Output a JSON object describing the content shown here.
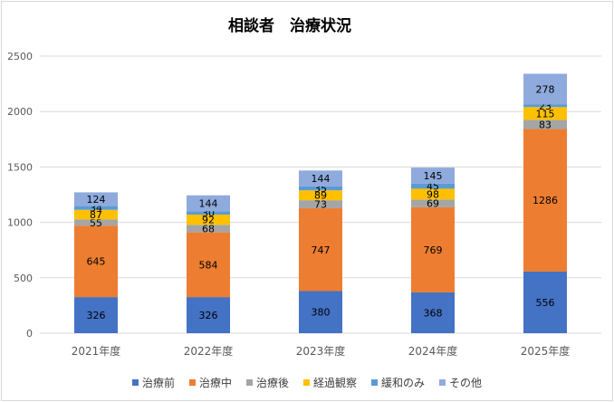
{
  "chart_data": {
    "type": "bar",
    "stacked": true,
    "title": "相談者　治療状況",
    "xlabel": "",
    "ylabel": "",
    "ylim": [
      0,
      2500
    ],
    "yticks": [
      0,
      500,
      1000,
      1500,
      2000,
      2500
    ],
    "grid": true,
    "legend_position": "bottom",
    "categories": [
      "2021年度",
      "2022年度",
      "2023年度",
      "2024年度",
      "2025年度"
    ],
    "series": [
      {
        "name": "治療前",
        "color": "#4472c4",
        "values": [
          326,
          326,
          380,
          368,
          556
        ]
      },
      {
        "name": "治療中",
        "color": "#ed7d31",
        "values": [
          645,
          584,
          747,
          769,
          1286
        ]
      },
      {
        "name": "治療後",
        "color": "#a5a5a5",
        "values": [
          55,
          68,
          73,
          69,
          83
        ]
      },
      {
        "name": "経過観察",
        "color": "#ffc000",
        "values": [
          87,
          92,
          89,
          98,
          115
        ]
      },
      {
        "name": "緩和のみ",
        "color": "#5b9bd5",
        "values": [
          34,
          30,
          35,
          45,
          23
        ]
      },
      {
        "name": "その他",
        "color": "#8faadc",
        "values": [
          124,
          144,
          144,
          145,
          278
        ]
      }
    ]
  }
}
